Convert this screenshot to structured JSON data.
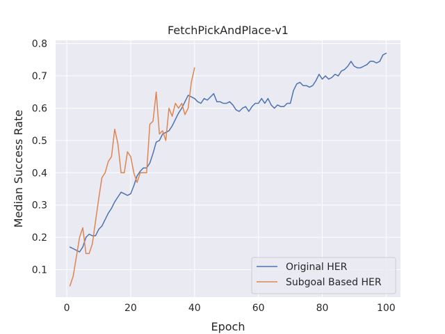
{
  "chart_data": {
    "type": "line",
    "title": "FetchPickAndPlace-v1",
    "xlabel": "Epoch",
    "ylabel": "Median Success Rate",
    "xlim": [
      -3.5,
      104.5
    ],
    "ylim": [
      0.015,
      0.81
    ],
    "xticks": [
      0,
      20,
      40,
      60,
      80,
      100
    ],
    "yticks": [
      0.1,
      0.2,
      0.3,
      0.4,
      0.5,
      0.6,
      0.7,
      0.8
    ],
    "xtick_labels": [
      "0",
      "20",
      "40",
      "60",
      "80",
      "100"
    ],
    "ytick_labels": [
      "0.1",
      "0.2",
      "0.3",
      "0.4",
      "0.5",
      "0.6",
      "0.7",
      "0.8"
    ],
    "grid": true,
    "legend_position": "lower-right",
    "series": [
      {
        "name": "Original HER",
        "color": "#4c72b0",
        "x": [
          1,
          2,
          3,
          4,
          5,
          6,
          7,
          8,
          9,
          10,
          11,
          12,
          13,
          14,
          15,
          16,
          17,
          18,
          19,
          20,
          21,
          22,
          23,
          24,
          25,
          26,
          27,
          28,
          29,
          30,
          31,
          32,
          33,
          34,
          35,
          36,
          37,
          38,
          39,
          40,
          41,
          42,
          43,
          44,
          45,
          46,
          47,
          48,
          49,
          50,
          51,
          52,
          53,
          54,
          55,
          56,
          57,
          58,
          59,
          60,
          61,
          62,
          63,
          64,
          65,
          66,
          67,
          68,
          69,
          70,
          71,
          72,
          73,
          74,
          75,
          76,
          77,
          78,
          79,
          80,
          81,
          82,
          83,
          84,
          85,
          86,
          87,
          88,
          89,
          90,
          91,
          92,
          93,
          94,
          95,
          96,
          97,
          98,
          99,
          100
        ],
        "values": [
          0.17,
          0.165,
          0.16,
          0.155,
          0.17,
          0.2,
          0.21,
          0.205,
          0.205,
          0.225,
          0.235,
          0.255,
          0.275,
          0.29,
          0.31,
          0.325,
          0.34,
          0.335,
          0.33,
          0.335,
          0.36,
          0.39,
          0.405,
          0.415,
          0.415,
          0.43,
          0.46,
          0.495,
          0.5,
          0.52,
          0.525,
          0.53,
          0.545,
          0.565,
          0.585,
          0.6,
          0.62,
          0.64,
          0.635,
          0.63,
          0.62,
          0.615,
          0.63,
          0.625,
          0.635,
          0.645,
          0.62,
          0.62,
          0.615,
          0.615,
          0.62,
          0.61,
          0.595,
          0.59,
          0.6,
          0.605,
          0.59,
          0.605,
          0.615,
          0.615,
          0.63,
          0.615,
          0.63,
          0.61,
          0.6,
          0.61,
          0.605,
          0.605,
          0.615,
          0.615,
          0.655,
          0.675,
          0.68,
          0.67,
          0.67,
          0.665,
          0.67,
          0.685,
          0.705,
          0.69,
          0.7,
          0.69,
          0.695,
          0.705,
          0.7,
          0.715,
          0.72,
          0.73,
          0.745,
          0.73,
          0.725,
          0.725,
          0.73,
          0.735,
          0.745,
          0.745,
          0.74,
          0.745,
          0.765,
          0.77
        ]
      },
      {
        "name": "Subgoal Based HER",
        "color": "#dd8452",
        "x": [
          1,
          2,
          3,
          4,
          5,
          6,
          7,
          8,
          9,
          10,
          11,
          12,
          13,
          14,
          15,
          16,
          17,
          18,
          19,
          20,
          21,
          22,
          23,
          24,
          25,
          26,
          27,
          28,
          29,
          30,
          31,
          32,
          33,
          34,
          35,
          36,
          37,
          38,
          39,
          40
        ],
        "values": [
          0.05,
          0.08,
          0.14,
          0.2,
          0.23,
          0.15,
          0.15,
          0.18,
          0.25,
          0.32,
          0.385,
          0.4,
          0.435,
          0.45,
          0.535,
          0.49,
          0.4,
          0.4,
          0.465,
          0.45,
          0.4,
          0.37,
          0.4,
          0.4,
          0.4,
          0.55,
          0.56,
          0.65,
          0.52,
          0.53,
          0.5,
          0.6,
          0.575,
          0.615,
          0.6,
          0.615,
          0.58,
          0.6,
          0.68,
          0.725
        ]
      }
    ]
  }
}
